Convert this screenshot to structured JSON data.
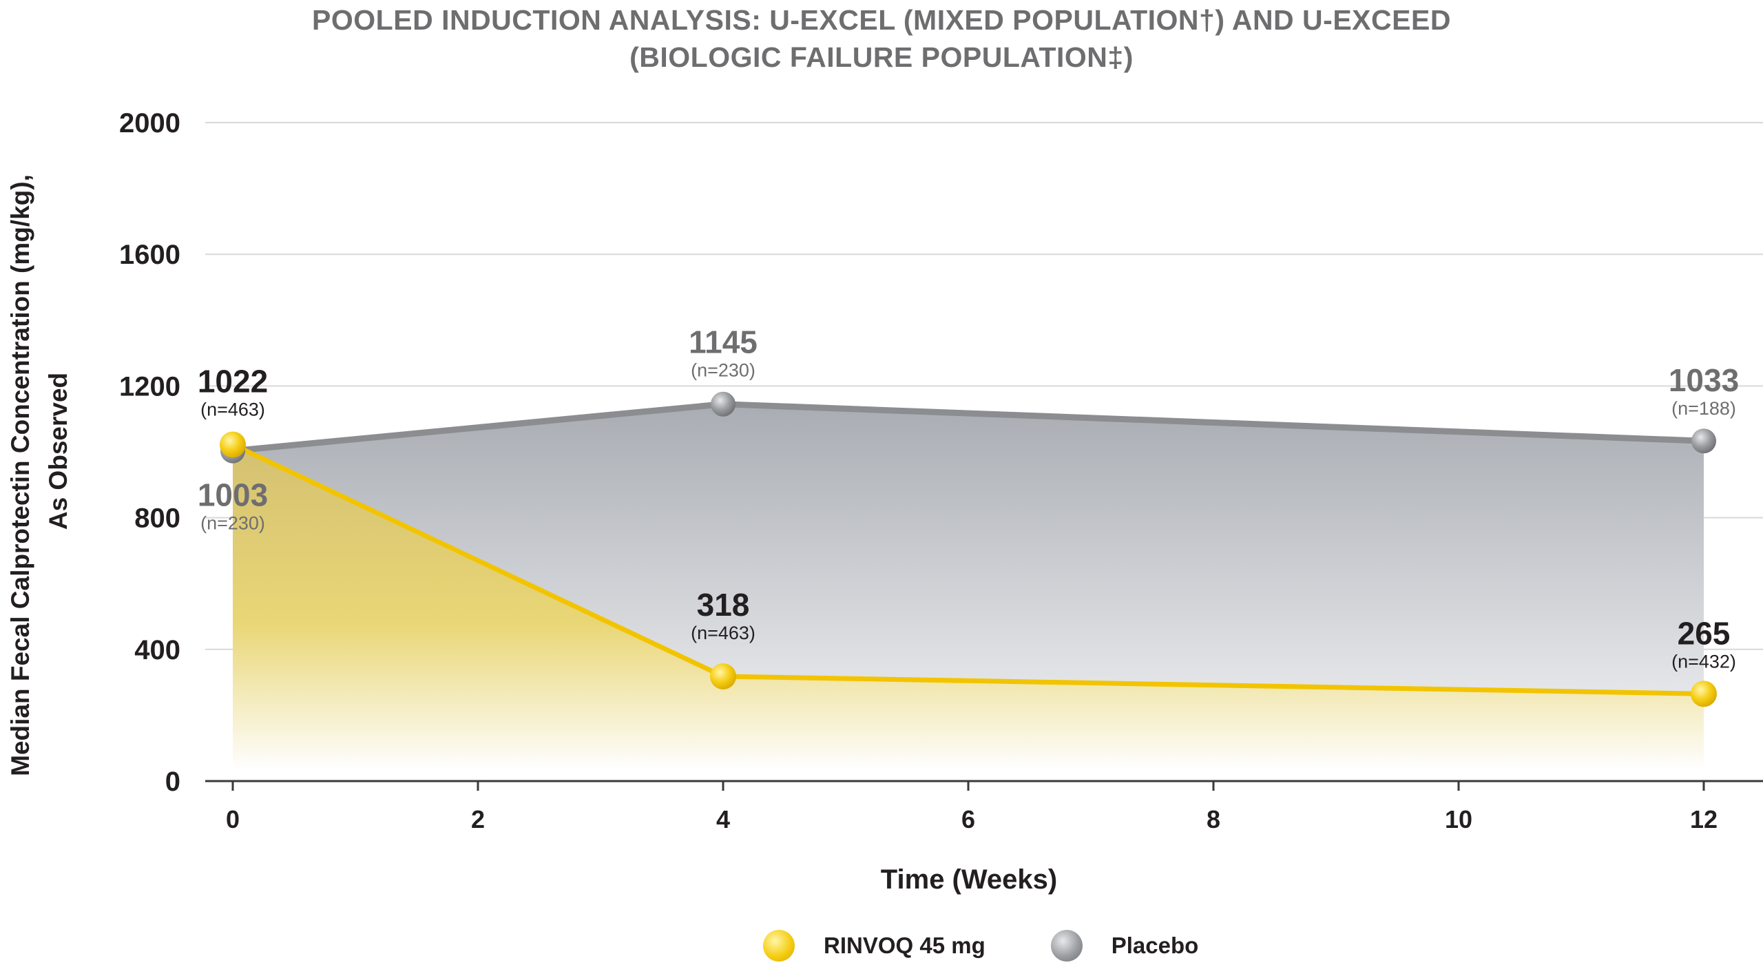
{
  "chart_data": {
    "type": "line",
    "title_line1": "POOLED INDUCTION ANALYSIS: U-EXCEL (MIXED POPULATION†) AND U-EXCEED",
    "title_line2": "(BIOLOGIC FAILURE POPULATION‡)",
    "xlabel": "Time (Weeks)",
    "ylabel_line1": "Median Fecal Calprotectin Concentration (mg/kg),",
    "ylabel_line2": "As Observed",
    "ylim": [
      0,
      2000
    ],
    "yticks": [
      0,
      400,
      800,
      1200,
      1600,
      2000
    ],
    "xlim": [
      0,
      12
    ],
    "xticks": [
      0,
      2,
      4,
      6,
      8,
      10,
      12
    ],
    "grid": true,
    "legend_position": "bottom-center",
    "series": [
      {
        "name": "RINVOQ 45 mg",
        "color": "#f2c400",
        "x": [
          0,
          4,
          12
        ],
        "y": [
          1022,
          318,
          265
        ],
        "value_labels": [
          "1022",
          "318",
          "265"
        ],
        "n_labels": [
          "(n=463)",
          "(n=463)",
          "(n=432)"
        ]
      },
      {
        "name": "Placebo",
        "color": "#8c8d90",
        "x": [
          0,
          4,
          12
        ],
        "y": [
          1003,
          1145,
          1033
        ],
        "value_labels": [
          "1003",
          "1145",
          "1033"
        ],
        "n_labels": [
          "(n=230)",
          "(n=230)",
          "(n=188)"
        ]
      }
    ]
  }
}
